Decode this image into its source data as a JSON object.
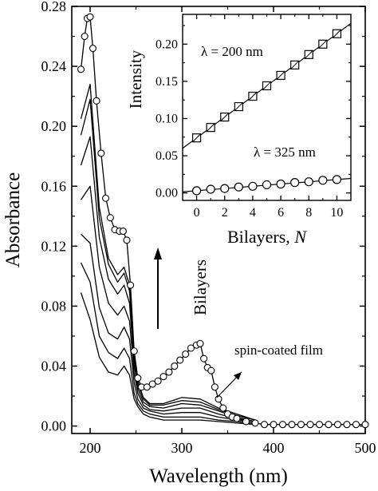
{
  "chart_data": [
    {
      "type": "line",
      "xlabel": "Wavelength (nm)",
      "ylabel": "Absorbance",
      "xlim": [
        180,
        500
      ],
      "ylim": [
        -0.005,
        0.28
      ],
      "xticks": [
        200,
        300,
        400,
        500
      ],
      "yticks": [
        0.0,
        0.04,
        0.08,
        0.12,
        0.16,
        0.2,
        0.24,
        0.28
      ],
      "grid": false,
      "series": [
        {
          "x": [
            190,
            200,
            210,
            220,
            230,
            237,
            243,
            248,
            252,
            258,
            265,
            280,
            300,
            320,
            340,
            360,
            380
          ],
          "y": [
            0.089,
            0.071,
            0.046,
            0.036,
            0.034,
            0.04,
            0.034,
            0.018,
            0.013,
            0.008,
            0.006,
            0.004,
            0.004,
            0.004,
            0.003,
            0.002,
            0.001
          ]
        },
        {
          "x": [
            190,
            200,
            210,
            220,
            230,
            237,
            243,
            248,
            252,
            258,
            265,
            280,
            300,
            320,
            340,
            360,
            380
          ],
          "y": [
            0.109,
            0.096,
            0.06,
            0.049,
            0.045,
            0.052,
            0.045,
            0.022,
            0.015,
            0.01,
            0.008,
            0.006,
            0.006,
            0.006,
            0.004,
            0.003,
            0.001
          ]
        },
        {
          "x": [
            190,
            200,
            210,
            220,
            230,
            237,
            243,
            248,
            252,
            258,
            265,
            280,
            300,
            320,
            340,
            360,
            380
          ],
          "y": [
            0.128,
            0.122,
            0.079,
            0.062,
            0.058,
            0.066,
            0.058,
            0.029,
            0.018,
            0.012,
            0.01,
            0.008,
            0.009,
            0.009,
            0.006,
            0.004,
            0.002
          ]
        },
        {
          "x": [
            190,
            200,
            210,
            220,
            230,
            237,
            243,
            248,
            252,
            258,
            265,
            280,
            300,
            320,
            340,
            360,
            380
          ],
          "y": [
            0.151,
            0.16,
            0.106,
            0.082,
            0.074,
            0.08,
            0.07,
            0.035,
            0.022,
            0.014,
            0.011,
            0.01,
            0.012,
            0.012,
            0.008,
            0.005,
            0.003
          ]
        },
        {
          "x": [
            190,
            200,
            210,
            220,
            230,
            237,
            243,
            248,
            252,
            258,
            265,
            280,
            300,
            320,
            340,
            360,
            380
          ],
          "y": [
            0.174,
            0.193,
            0.126,
            0.098,
            0.088,
            0.094,
            0.082,
            0.041,
            0.025,
            0.016,
            0.013,
            0.012,
            0.015,
            0.014,
            0.01,
            0.006,
            0.003
          ]
        },
        {
          "x": [
            190,
            200,
            210,
            220,
            230,
            237,
            243,
            248,
            252,
            258,
            265,
            280,
            300,
            320,
            340,
            360,
            380
          ],
          "y": [
            0.194,
            0.218,
            0.139,
            0.108,
            0.096,
            0.102,
            0.09,
            0.046,
            0.028,
            0.018,
            0.014,
            0.014,
            0.017,
            0.016,
            0.011,
            0.007,
            0.004
          ]
        },
        {
          "x": [
            190,
            200,
            210,
            220,
            230,
            237,
            243,
            248,
            252,
            258,
            265,
            280,
            300,
            320,
            340,
            360,
            380
          ],
          "y": [
            0.205,
            0.228,
            0.146,
            0.112,
            0.101,
            0.106,
            0.094,
            0.049,
            0.03,
            0.019,
            0.015,
            0.015,
            0.019,
            0.018,
            0.012,
            0.008,
            0.004
          ]
        },
        {
          "x": [
            190,
            194,
            197,
            200,
            203,
            207,
            212,
            217,
            222,
            227,
            232,
            236,
            240,
            244,
            248,
            252,
            256,
            262,
            268,
            274,
            280,
            286,
            292,
            298,
            304,
            310,
            316,
            320,
            324,
            328,
            332,
            336,
            340,
            345,
            350,
            355,
            360,
            370,
            380,
            390,
            400,
            410,
            420,
            430,
            440,
            450,
            460,
            470,
            480,
            490,
            500
          ],
          "y": [
            0.238,
            0.26,
            0.272,
            0.273,
            0.252,
            0.217,
            0.182,
            0.152,
            0.139,
            0.131,
            0.13,
            0.13,
            0.124,
            0.094,
            0.05,
            0.032,
            0.026,
            0.026,
            0.028,
            0.03,
            0.033,
            0.036,
            0.04,
            0.044,
            0.048,
            0.052,
            0.054,
            0.055,
            0.045,
            0.039,
            0.037,
            0.026,
            0.018,
            0.012,
            0.008,
            0.006,
            0.005,
            0.003,
            0.002,
            0.001,
            0.001,
            0.001,
            0.001,
            0.001,
            0.001,
            0.001,
            0.001,
            0.001,
            0.001,
            0.001,
            0.001
          ]
        }
      ]
    },
    {
      "type": "scatter",
      "xlabel": "Bilayers, N",
      "ylabel": "Intensity",
      "xlim": [
        -1,
        11
      ],
      "ylim": [
        -0.01,
        0.24
      ],
      "xticks": [
        0,
        2,
        4,
        6,
        8,
        10
      ],
      "yticks": [
        0.0,
        0.05,
        0.1,
        0.15,
        0.2
      ],
      "series": [
        {
          "label": "λ = 200 nm",
          "marker": "square",
          "x": [
            0,
            1,
            2,
            3,
            4,
            5,
            6,
            7,
            8,
            9,
            10
          ],
          "y": [
            0.074,
            0.088,
            0.102,
            0.116,
            0.13,
            0.144,
            0.158,
            0.172,
            0.186,
            0.2,
            0.214
          ]
        },
        {
          "label": "λ = 325 nm",
          "marker": "circle",
          "x": [
            0,
            1,
            2,
            3,
            4,
            5,
            6,
            7,
            8,
            9,
            10
          ],
          "y": [
            0.003,
            0.005,
            0.006,
            0.008,
            0.009,
            0.011,
            0.012,
            0.014,
            0.015,
            0.017,
            0.018
          ]
        }
      ]
    }
  ],
  "annotations": {
    "bilayers": "Bilayers",
    "spin_coated": "spin-coated film"
  }
}
